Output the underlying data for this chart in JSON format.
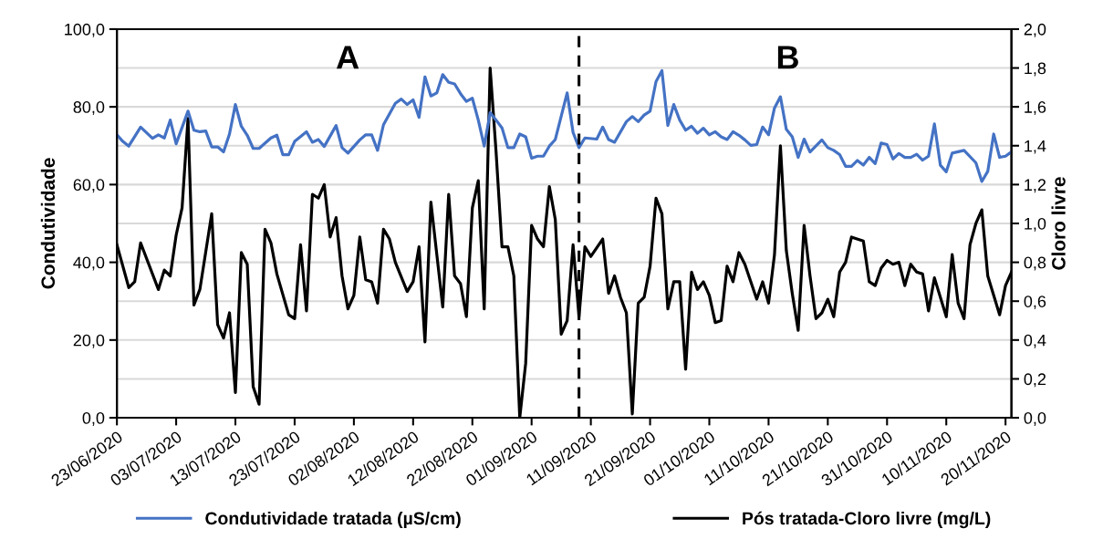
{
  "chart_data": {
    "type": "line",
    "ylabel": "Condutividade",
    "y2label": "Cloro livre",
    "annotations": [
      "A",
      "B"
    ],
    "xlim": [
      "2020-06-23",
      "2020-11-21"
    ],
    "xticks": [
      {
        "value": "2020-06-23",
        "label": "23/06/2020"
      },
      {
        "value": "2020-07-03",
        "label": "03/07/2020"
      },
      {
        "value": "2020-07-13",
        "label": "13/07/2020"
      },
      {
        "value": "2020-07-23",
        "label": "23/07/2020"
      },
      {
        "value": "2020-08-02",
        "label": "02/08/2020"
      },
      {
        "value": "2020-08-12",
        "label": "12/08/2020"
      },
      {
        "value": "2020-08-22",
        "label": "22/08/2020"
      },
      {
        "value": "2020-09-01",
        "label": "01/09/2020"
      },
      {
        "value": "2020-09-11",
        "label": "11/09/2020"
      },
      {
        "value": "2020-09-21",
        "label": "21/09/2020"
      },
      {
        "value": "2020-10-01",
        "label": "01/10/2020"
      },
      {
        "value": "2020-10-11",
        "label": "11/10/2020"
      },
      {
        "value": "2020-10-21",
        "label": "21/10/2020"
      },
      {
        "value": "2020-10-31",
        "label": "31/10/2020"
      },
      {
        "value": "2020-11-10",
        "label": "10/11/2020"
      },
      {
        "value": "2020-11-20",
        "label": "20/11/2020"
      }
    ],
    "ylim": [
      0,
      100
    ],
    "yticks": [
      {
        "value": 0,
        "label": "0,0"
      },
      {
        "value": 20,
        "label": "20,0"
      },
      {
        "value": 40,
        "label": "40,0"
      },
      {
        "value": 60,
        "label": "60,0"
      },
      {
        "value": 80,
        "label": "80,0"
      },
      {
        "value": 100,
        "label": "100,0"
      }
    ],
    "y2lim": [
      0,
      2
    ],
    "y2ticks": [
      {
        "value": 0,
        "label": "0,0"
      },
      {
        "value": 0.2,
        "label": "0,2"
      },
      {
        "value": 0.4,
        "label": "0,4"
      },
      {
        "value": 0.6,
        "label": "0,6"
      },
      {
        "value": 0.8,
        "label": "0,8"
      },
      {
        "value": 1.0,
        "label": "1,0"
      },
      {
        "value": 1.2,
        "label": "1,2"
      },
      {
        "value": 1.4,
        "label": "1,4"
      },
      {
        "value": 1.6,
        "label": "1,6"
      },
      {
        "value": 1.8,
        "label": "1,8"
      },
      {
        "value": 2.0,
        "label": "2,0"
      }
    ],
    "grid": "y2",
    "legend": "bottom",
    "line_style": "solid",
    "marker": "none",
    "ref_lines": [
      {
        "axis": "x",
        "value": "2020-09-09",
        "label": null,
        "color": "#000000",
        "line_style": "dashed"
      }
    ],
    "series": [
      {
        "name": "Condutividade tratada (µS/cm)",
        "color": "#4472c4",
        "x": [
          "2020-06-23",
          "2020-06-24",
          "2020-06-25",
          "2020-06-27",
          "2020-06-29",
          "2020-06-30",
          "2020-07-01",
          "2020-07-02",
          "2020-07-03",
          "2020-07-05",
          "2020-07-06",
          "2020-07-07",
          "2020-07-08",
          "2020-07-09",
          "2020-07-10",
          "2020-07-11",
          "2020-07-12",
          "2020-07-13",
          "2020-07-14",
          "2020-07-15",
          "2020-07-16",
          "2020-07-17",
          "2020-07-19",
          "2020-07-20",
          "2020-07-21",
          "2020-07-22",
          "2020-07-23",
          "2020-07-25",
          "2020-07-26",
          "2020-07-27",
          "2020-07-28",
          "2020-07-30",
          "2020-07-31",
          "2020-08-01",
          "2020-08-03",
          "2020-08-04",
          "2020-08-05",
          "2020-08-06",
          "2020-08-07",
          "2020-08-09",
          "2020-08-10",
          "2020-08-11",
          "2020-08-12",
          "2020-08-13",
          "2020-08-14",
          "2020-08-15",
          "2020-08-16",
          "2020-08-17",
          "2020-08-18",
          "2020-08-19",
          "2020-08-20",
          "2020-08-21",
          "2020-08-22",
          "2020-08-23",
          "2020-08-24",
          "2020-08-25",
          "2020-08-26",
          "2020-08-27",
          "2020-08-28",
          "2020-08-29",
          "2020-08-30",
          "2020-08-31",
          "2020-09-01",
          "2020-09-02",
          "2020-09-03",
          "2020-09-04",
          "2020-09-05",
          "2020-09-07",
          "2020-09-08",
          "2020-09-09",
          "2020-09-10",
          "2020-09-12",
          "2020-09-13",
          "2020-09-14",
          "2020-09-15",
          "2020-09-17",
          "2020-09-18",
          "2020-09-19",
          "2020-09-20",
          "2020-09-21",
          "2020-09-22",
          "2020-09-23",
          "2020-09-24",
          "2020-09-25",
          "2020-09-26",
          "2020-09-27",
          "2020-09-28",
          "2020-09-29",
          "2020-09-30",
          "2020-10-01",
          "2020-10-02",
          "2020-10-03",
          "2020-10-04",
          "2020-10-05",
          "2020-10-06",
          "2020-10-07",
          "2020-10-08",
          "2020-10-09",
          "2020-10-10",
          "2020-10-11",
          "2020-10-12",
          "2020-10-13",
          "2020-10-14",
          "2020-10-15",
          "2020-10-16",
          "2020-10-17",
          "2020-10-18",
          "2020-10-20",
          "2020-10-21",
          "2020-10-22",
          "2020-10-23",
          "2020-10-24",
          "2020-10-25",
          "2020-10-26",
          "2020-10-27",
          "2020-10-28",
          "2020-10-29",
          "2020-10-30",
          "2020-10-31",
          "2020-11-01",
          "2020-11-02",
          "2020-11-03",
          "2020-11-04",
          "2020-11-05",
          "2020-11-06",
          "2020-11-07",
          "2020-11-08",
          "2020-11-09",
          "2020-11-10",
          "2020-11-11",
          "2020-11-13",
          "2020-11-15",
          "2020-11-16",
          "2020-11-17",
          "2020-11-18",
          "2020-11-19",
          "2020-11-20",
          "2020-11-21"
        ],
        "values": [
          72.8,
          71.1,
          69.9,
          74.8,
          71.9,
          72.8,
          72.0,
          76.6,
          70.5,
          78.9,
          74.0,
          73.6,
          73.8,
          69.7,
          69.7,
          68.4,
          73.0,
          80.6,
          75.0,
          72.7,
          69.3,
          69.3,
          72.0,
          72.7,
          67.7,
          67.7,
          71.1,
          73.6,
          70.9,
          71.6,
          69.8,
          75.2,
          69.5,
          68.1,
          71.5,
          72.8,
          72.8,
          68.8,
          75.4,
          80.9,
          82.0,
          80.6,
          81.8,
          77.3,
          87.7,
          82.8,
          83.6,
          88.3,
          86.3,
          85.9,
          83.4,
          81.4,
          82.2,
          76.6,
          69.9,
          78.5,
          76.6,
          74.6,
          69.5,
          69.5,
          73.0,
          72.3,
          66.8,
          67.3,
          67.3,
          69.9,
          71.6,
          83.6,
          73.4,
          69.5,
          72.0,
          71.7,
          74.8,
          71.6,
          70.9,
          76.2,
          77.5,
          76.2,
          77.9,
          78.9,
          86.5,
          89.3,
          75.2,
          80.6,
          76.6,
          74.0,
          75.0,
          73.2,
          74.5,
          72.8,
          73.6,
          72.3,
          71.6,
          73.6,
          72.7,
          71.5,
          70.1,
          70.3,
          74.8,
          72.8,
          79.7,
          82.6,
          74.2,
          72.3,
          67.0,
          71.7,
          68.4,
          71.5,
          69.5,
          68.8,
          67.7,
          64.7,
          64.7,
          66.2,
          65.0,
          67.0,
          65.4,
          70.7,
          70.3,
          66.6,
          68.0,
          67.0,
          67.0,
          67.8,
          66.3,
          67.3,
          75.6,
          65.0,
          63.3,
          68.1,
          68.8,
          65.6,
          60.8,
          63.4,
          73.0,
          67.0,
          67.3,
          68.4
        ]
      },
      {
        "name": "Pós tratada-Cloro livre (mg/L)",
        "color": "#000000",
        "axis": "y2",
        "x": [
          "2020-06-23",
          "2020-06-25",
          "2020-06-26",
          "2020-06-27",
          "2020-06-30",
          "2020-07-01",
          "2020-07-02",
          "2020-07-03",
          "2020-07-04",
          "2020-07-05",
          "2020-07-06",
          "2020-07-07",
          "2020-07-09",
          "2020-07-10",
          "2020-07-11",
          "2020-07-12",
          "2020-07-13",
          "2020-07-14",
          "2020-07-15",
          "2020-07-16",
          "2020-07-17",
          "2020-07-18",
          "2020-07-19",
          "2020-07-20",
          "2020-07-22",
          "2020-07-23",
          "2020-07-24",
          "2020-07-25",
          "2020-07-26",
          "2020-07-27",
          "2020-07-28",
          "2020-07-29",
          "2020-07-30",
          "2020-07-31",
          "2020-08-01",
          "2020-08-02",
          "2020-08-03",
          "2020-08-04",
          "2020-08-05",
          "2020-08-06",
          "2020-08-07",
          "2020-08-08",
          "2020-08-09",
          "2020-08-11",
          "2020-08-12",
          "2020-08-13",
          "2020-08-14",
          "2020-08-15",
          "2020-08-16",
          "2020-08-17",
          "2020-08-18",
          "2020-08-19",
          "2020-08-20",
          "2020-08-21",
          "2020-08-22",
          "2020-08-23",
          "2020-08-24",
          "2020-08-25",
          "2020-08-26",
          "2020-08-27",
          "2020-08-28",
          "2020-08-29",
          "2020-08-30",
          "2020-08-31",
          "2020-09-01",
          "2020-09-02",
          "2020-09-03",
          "2020-09-04",
          "2020-09-05",
          "2020-09-06",
          "2020-09-07",
          "2020-09-08",
          "2020-09-09",
          "2020-09-10",
          "2020-09-11",
          "2020-09-13",
          "2020-09-14",
          "2020-09-15",
          "2020-09-16",
          "2020-09-17",
          "2020-09-18",
          "2020-09-19",
          "2020-09-20",
          "2020-09-21",
          "2020-09-22",
          "2020-09-23",
          "2020-09-24",
          "2020-09-25",
          "2020-09-26",
          "2020-09-27",
          "2020-09-28",
          "2020-09-29",
          "2020-09-30",
          "2020-10-01",
          "2020-10-02",
          "2020-10-03",
          "2020-10-04",
          "2020-10-05",
          "2020-10-06",
          "2020-10-07",
          "2020-10-09",
          "2020-10-10",
          "2020-10-11",
          "2020-10-12",
          "2020-10-13",
          "2020-10-14",
          "2020-10-15",
          "2020-10-16",
          "2020-10-17",
          "2020-10-18",
          "2020-10-19",
          "2020-10-20",
          "2020-10-21",
          "2020-10-22",
          "2020-10-23",
          "2020-10-24",
          "2020-10-25",
          "2020-10-27",
          "2020-10-28",
          "2020-10-29",
          "2020-10-30",
          "2020-10-31",
          "2020-11-01",
          "2020-11-02",
          "2020-11-03",
          "2020-11-04",
          "2020-11-05",
          "2020-11-06",
          "2020-11-07",
          "2020-11-08",
          "2020-11-10",
          "2020-11-11",
          "2020-11-12",
          "2020-11-13",
          "2020-11-14",
          "2020-11-15",
          "2020-11-16",
          "2020-11-17",
          "2020-11-18",
          "2020-11-19",
          "2020-11-20",
          "2020-11-21"
        ],
        "values": [
          0.89,
          0.67,
          0.7,
          0.9,
          0.66,
          0.76,
          0.73,
          0.94,
          1.08,
          1.54,
          0.58,
          0.66,
          1.05,
          0.48,
          0.41,
          0.54,
          0.13,
          0.85,
          0.79,
          0.16,
          0.07,
          0.97,
          0.9,
          0.74,
          0.53,
          0.51,
          0.89,
          0.55,
          1.15,
          1.13,
          1.2,
          0.93,
          1.03,
          0.73,
          0.56,
          0.63,
          0.93,
          0.71,
          0.7,
          0.59,
          0.97,
          0.92,
          0.8,
          0.65,
          0.7,
          0.88,
          0.39,
          1.11,
          0.84,
          0.57,
          1.15,
          0.73,
          0.69,
          0.52,
          1.08,
          1.22,
          0.56,
          1.8,
          1.37,
          0.88,
          0.88,
          0.73,
          0.0,
          0.28,
          0.99,
          0.92,
          0.88,
          1.19,
          1.02,
          0.43,
          0.5,
          0.89,
          0.52,
          0.88,
          0.83,
          0.92,
          0.64,
          0.73,
          0.62,
          0.54,
          0.02,
          0.59,
          0.62,
          0.78,
          1.13,
          1.05,
          0.56,
          0.7,
          0.7,
          0.25,
          0.75,
          0.66,
          0.7,
          0.63,
          0.49,
          0.5,
          0.78,
          0.7,
          0.85,
          0.79,
          0.61,
          0.7,
          0.59,
          0.84,
          1.4,
          0.86,
          0.64,
          0.45,
          0.99,
          0.73,
          0.51,
          0.54,
          0.61,
          0.52,
          0.75,
          0.8,
          0.93,
          0.91,
          0.7,
          0.68,
          0.77,
          0.81,
          0.79,
          0.8,
          0.68,
          0.79,
          0.75,
          0.74,
          0.55,
          0.72,
          0.52,
          0.84,
          0.59,
          0.51,
          0.89,
          1.0,
          1.07,
          0.73,
          0.63,
          0.53,
          0.68,
          0.75
        ]
      }
    ]
  }
}
